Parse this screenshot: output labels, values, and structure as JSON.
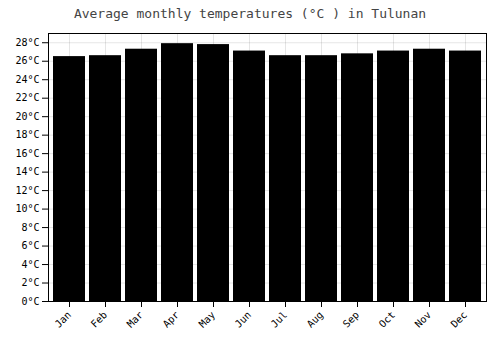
{
  "chart_data": {
    "type": "bar",
    "title": "Average monthly temperatures (°C ) in Tulunan",
    "categories": [
      "Jan",
      "Feb",
      "Mar",
      "Apr",
      "May",
      "Jun",
      "Jul",
      "Aug",
      "Sep",
      "Oct",
      "Nov",
      "Dec"
    ],
    "values": [
      26.5,
      26.6,
      27.3,
      27.9,
      27.8,
      27.1,
      26.6,
      26.6,
      26.8,
      27.1,
      27.3,
      27.1
    ],
    "ylim": [
      0,
      29
    ],
    "yticks": [
      {
        "value": 0,
        "label": "0°C"
      },
      {
        "value": 2,
        "label": "2°C"
      },
      {
        "value": 4,
        "label": "4°C"
      },
      {
        "value": 6,
        "label": "6°C"
      },
      {
        "value": 8,
        "label": "8°C"
      },
      {
        "value": 10,
        "label": "10°C"
      },
      {
        "value": 12,
        "label": "12°C"
      },
      {
        "value": 14,
        "label": "14°C"
      },
      {
        "value": 16,
        "label": "16°C"
      },
      {
        "value": 18,
        "label": "18°C"
      },
      {
        "value": 20,
        "label": "20°C"
      },
      {
        "value": 22,
        "label": "22°C"
      },
      {
        "value": 24,
        "label": "24°C"
      },
      {
        "value": 26,
        "label": "26°C"
      },
      {
        "value": 28,
        "label": "28°C"
      }
    ],
    "grid": true
  }
}
